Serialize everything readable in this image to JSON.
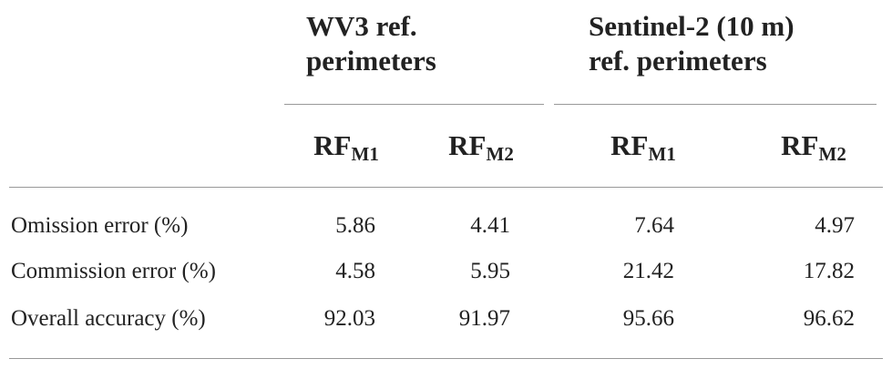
{
  "table": {
    "group_headers": [
      {
        "lines": [
          "WV3 ref.",
          "perimeters"
        ]
      },
      {
        "lines": [
          "Sentinel-2 (10 m)",
          "ref. perimeters"
        ]
      }
    ],
    "column_headers": [
      {
        "base": "RF",
        "sub": "M1"
      },
      {
        "base": "RF",
        "sub": "M2"
      },
      {
        "base": "RF",
        "sub": "M1"
      },
      {
        "base": "RF",
        "sub": "M2"
      }
    ],
    "rows": [
      {
        "label": "Omission error (%)",
        "cells": [
          "5.86",
          "4.41",
          "7.64",
          "4.97"
        ]
      },
      {
        "label": "Commission error (%)",
        "cells": [
          "4.58",
          "5.95",
          "21.42",
          "17.82"
        ]
      },
      {
        "label": "Overall accuracy (%)",
        "cells": [
          "92.03",
          "91.97",
          "95.66",
          "96.62"
        ]
      }
    ]
  }
}
